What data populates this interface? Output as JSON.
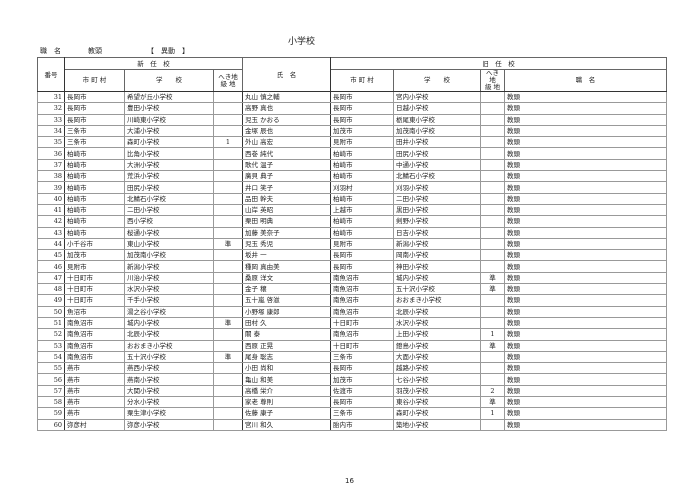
{
  "title": "小学校",
  "position_label": "職　名",
  "position_value": "教頭",
  "category": "【　異動　】",
  "headers": {
    "number": "番号",
    "new_school": "新　任　校",
    "old_school": "旧　任　校",
    "city": "市 町 村",
    "school": "学　　校",
    "remote": "へき地\n級 地",
    "name": "氏　名",
    "position": "職　名"
  },
  "rows": [
    {
      "no": "31",
      "new_city": "長岡市",
      "new_school": "希望が丘小学校",
      "new_remote": "",
      "name": "丸山 慎之輔",
      "old_city": "長岡市",
      "old_school": "宮内小学校",
      "old_remote": "",
      "position": "教頭"
    },
    {
      "no": "32",
      "new_city": "長岡市",
      "new_school": "豊田小学校",
      "new_remote": "",
      "name": "高野 真也",
      "old_city": "長岡市",
      "old_school": "日越小学校",
      "old_remote": "",
      "position": "教頭"
    },
    {
      "no": "33",
      "new_city": "長岡市",
      "new_school": "川崎東小学校",
      "new_remote": "",
      "name": "児玉 かおる",
      "old_city": "長岡市",
      "old_school": "栃尾東小学校",
      "old_remote": "",
      "position": "教頭"
    },
    {
      "no": "34",
      "new_city": "三条市",
      "new_school": "大浦小学校",
      "new_remote": "",
      "name": "金塚 辰也",
      "old_city": "加茂市",
      "old_school": "加茂南小学校",
      "old_remote": "",
      "position": "教頭"
    },
    {
      "no": "35",
      "new_city": "三条市",
      "new_school": "森町小学校",
      "new_remote": "1",
      "name": "外山 高宏",
      "old_city": "見附市",
      "old_school": "田井小学校",
      "old_remote": "",
      "position": "教頭"
    },
    {
      "no": "36",
      "new_city": "柏崎市",
      "new_school": "比角小学校",
      "new_remote": "",
      "name": "西巻 純代",
      "old_city": "柏崎市",
      "old_school": "田尻小学校",
      "old_remote": "",
      "position": "教頭"
    },
    {
      "no": "37",
      "new_city": "柏崎市",
      "new_school": "大洲小学校",
      "new_remote": "",
      "name": "歌代 温子",
      "old_city": "柏崎市",
      "old_school": "中通小学校",
      "old_remote": "",
      "position": "教頭"
    },
    {
      "no": "38",
      "new_city": "柏崎市",
      "new_school": "荒浜小学校",
      "new_remote": "",
      "name": "廣貝 典子",
      "old_city": "柏崎市",
      "old_school": "北鯖石小学校",
      "old_remote": "",
      "position": "教頭"
    },
    {
      "no": "39",
      "new_city": "柏崎市",
      "new_school": "田尻小学校",
      "new_remote": "",
      "name": "井口 笑子",
      "old_city": "刈羽村",
      "old_school": "刈羽小学校",
      "old_remote": "",
      "position": "教頭"
    },
    {
      "no": "40",
      "new_city": "柏崎市",
      "new_school": "北鯖石小学校",
      "new_remote": "",
      "name": "品田 幹夫",
      "old_city": "柏崎市",
      "old_school": "二田小学校",
      "old_remote": "",
      "position": "教頭"
    },
    {
      "no": "41",
      "new_city": "柏崎市",
      "new_school": "二田小学校",
      "new_remote": "",
      "name": "山岸 英昭",
      "old_city": "上越市",
      "old_school": "黒田小学校",
      "old_remote": "",
      "position": "教頭"
    },
    {
      "no": "42",
      "new_city": "柏崎市",
      "new_school": "西小学校",
      "new_remote": "",
      "name": "栗田 明典",
      "old_city": "柏崎市",
      "old_school": "剣野小学校",
      "old_remote": "",
      "position": "教頭"
    },
    {
      "no": "43",
      "new_city": "柏崎市",
      "new_school": "桜通小学校",
      "new_remote": "",
      "name": "加藤 美奈子",
      "old_city": "柏崎市",
      "old_school": "日吉小学校",
      "old_remote": "",
      "position": "教頭"
    },
    {
      "no": "44",
      "new_city": "小千谷市",
      "new_school": "東山小学校",
      "new_remote": "準",
      "name": "児玉 秀児",
      "old_city": "見附市",
      "old_school": "新潟小学校",
      "old_remote": "",
      "position": "教頭"
    },
    {
      "no": "45",
      "new_city": "加茂市",
      "new_school": "加茂南小学校",
      "new_remote": "",
      "name": "坂井 一",
      "old_city": "長岡市",
      "old_school": "岡南小学校",
      "old_remote": "",
      "position": "教頭"
    },
    {
      "no": "46",
      "new_city": "見附市",
      "new_school": "新潟小学校",
      "new_remote": "",
      "name": "種岡 真由美",
      "old_city": "長岡市",
      "old_school": "神田小学校",
      "old_remote": "",
      "position": "教頭"
    },
    {
      "no": "47",
      "new_city": "十日町市",
      "new_school": "川治小学校",
      "new_remote": "",
      "name": "桑原 洋文",
      "old_city": "南魚沼市",
      "old_school": "城内小学校",
      "old_remote": "準",
      "position": "教頭"
    },
    {
      "no": "48",
      "new_city": "十日町市",
      "new_school": "水沢小学校",
      "new_remote": "",
      "name": "金子 穣",
      "old_city": "南魚沼市",
      "old_school": "五十沢小学校",
      "old_remote": "準",
      "position": "教頭"
    },
    {
      "no": "49",
      "new_city": "十日町市",
      "new_school": "千手小学校",
      "new_remote": "",
      "name": "五十嵐 啓滋",
      "old_city": "南魚沼市",
      "old_school": "おおまき小学校",
      "old_remote": "",
      "position": "教頭"
    },
    {
      "no": "50",
      "new_city": "魚沼市",
      "new_school": "湯之谷小学校",
      "new_remote": "",
      "name": "小野塚 康郎",
      "old_city": "南魚沼市",
      "old_school": "北辰小学校",
      "old_remote": "",
      "position": "教頭"
    },
    {
      "no": "51",
      "new_city": "南魚沼市",
      "new_school": "城内小学校",
      "new_remote": "準",
      "name": "田村 久",
      "old_city": "十日町市",
      "old_school": "水沢小学校",
      "old_remote": "",
      "position": "教頭"
    },
    {
      "no": "52",
      "new_city": "南魚沼市",
      "new_school": "北辰小学校",
      "new_remote": "",
      "name": "關 泰",
      "old_city": "南魚沼市",
      "old_school": "上田小学校",
      "old_remote": "1",
      "position": "教頭"
    },
    {
      "no": "53",
      "new_city": "南魚沼市",
      "new_school": "おおまき小学校",
      "new_remote": "",
      "name": "西原 正晃",
      "old_city": "十日町市",
      "old_school": "鐙島小学校",
      "old_remote": "準",
      "position": "教頭"
    },
    {
      "no": "54",
      "new_city": "南魚沼市",
      "new_school": "五十沢小学校",
      "new_remote": "準",
      "name": "尾身 聡志",
      "old_city": "三条市",
      "old_school": "大面小学校",
      "old_remote": "",
      "position": "教頭"
    },
    {
      "no": "55",
      "new_city": "燕市",
      "new_school": "燕西小学校",
      "new_remote": "",
      "name": "小田 尚和",
      "old_city": "長岡市",
      "old_school": "越路小学校",
      "old_remote": "",
      "position": "教頭"
    },
    {
      "no": "56",
      "new_city": "燕市",
      "new_school": "燕南小学校",
      "new_remote": "",
      "name": "亀山 和美",
      "old_city": "加茂市",
      "old_school": "七谷小学校",
      "old_remote": "",
      "position": "教頭"
    },
    {
      "no": "57",
      "new_city": "燕市",
      "new_school": "大関小学校",
      "new_remote": "",
      "name": "高橋 栄介",
      "old_city": "佐渡市",
      "old_school": "羽茂小学校",
      "old_remote": "2",
      "position": "教頭"
    },
    {
      "no": "58",
      "new_city": "燕市",
      "new_school": "分水小学校",
      "new_remote": "",
      "name": "家老 尊則",
      "old_city": "長岡市",
      "old_school": "東谷小学校",
      "old_remote": "準",
      "position": "教頭"
    },
    {
      "no": "59",
      "new_city": "燕市",
      "new_school": "粟生津小学校",
      "new_remote": "",
      "name": "佐藤 康子",
      "old_city": "三条市",
      "old_school": "森町小学校",
      "old_remote": "1",
      "position": "教頭"
    },
    {
      "no": "60",
      "new_city": "弥彦村",
      "new_school": "弥彦小学校",
      "new_remote": "",
      "name": "宮川 和久",
      "old_city": "胎内市",
      "old_school": "築地小学校",
      "old_remote": "",
      "position": "教頭"
    }
  ],
  "page_number": "16"
}
